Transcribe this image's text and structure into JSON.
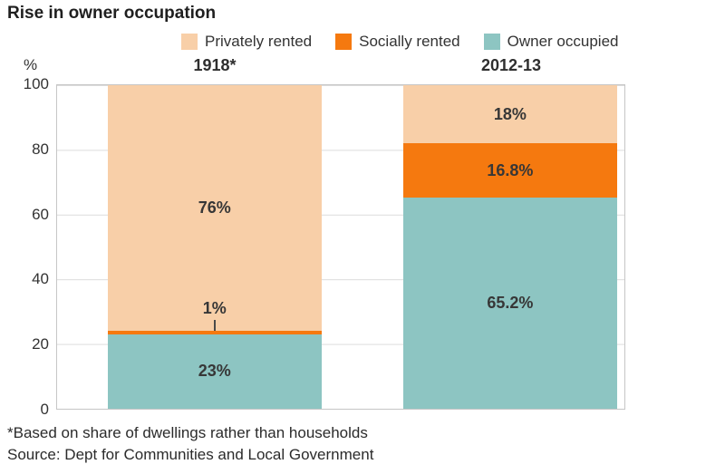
{
  "title": "Rise in owner occupation",
  "legend": [
    {
      "label": "Privately rented",
      "color": "#f8cfa8"
    },
    {
      "label": "Socially rented",
      "color": "#f5790f"
    },
    {
      "label": "Owner occupied",
      "color": "#8dc5c2"
    }
  ],
  "y_axis": {
    "unit": "%",
    "ticks": [
      "100",
      "80",
      "60",
      "40",
      "20",
      "0"
    ]
  },
  "footnote": "*Based on share of dwellings rather than households",
  "source": "Source: Dept for Communities and Local Government",
  "chart_data": {
    "type": "bar",
    "stacked": true,
    "categories": [
      "1918*",
      "2012-13"
    ],
    "series": [
      {
        "name": "Owner occupied",
        "color": "#8dc5c2",
        "values": [
          23,
          65.2
        ],
        "labels": [
          "23%",
          "65.2%"
        ]
      },
      {
        "name": "Socially rented",
        "color": "#f5790f",
        "values": [
          1,
          16.8
        ],
        "labels": [
          "1%",
          "16.8%"
        ]
      },
      {
        "name": "Privately rented",
        "color": "#f8cfa8",
        "values": [
          76,
          18
        ],
        "labels": [
          "76%",
          "18%"
        ]
      }
    ],
    "ylabel": "%",
    "ylim": [
      0,
      100
    ],
    "grid": true,
    "legend_position": "top"
  }
}
